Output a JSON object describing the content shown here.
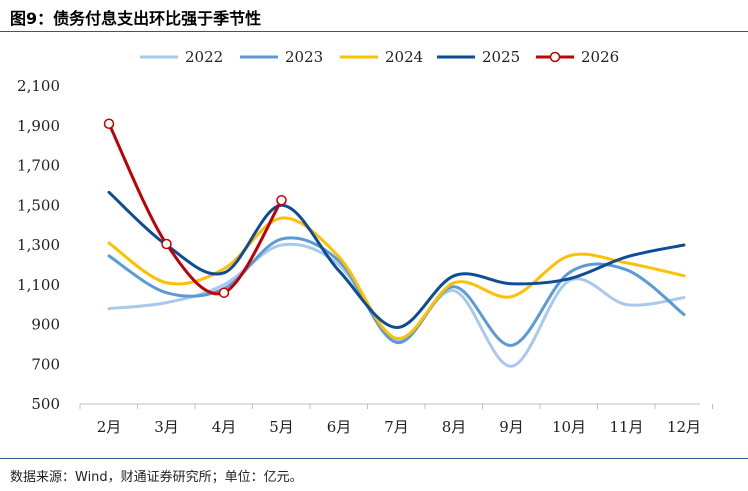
{
  "figure": {
    "title": "图9：债务付息支出环比强于季节性",
    "source": "数据来源：Wind，财通证券研究所；单位：亿元。"
  },
  "chart_data": {
    "type": "line",
    "categories": [
      "2月",
      "3月",
      "4月",
      "5月",
      "6月",
      "7月",
      "8月",
      "9月",
      "10月",
      "11月",
      "12月"
    ],
    "ylim": [
      500,
      2100
    ],
    "yticks": [
      500,
      700,
      900,
      1100,
      1300,
      1500,
      1700,
      1900,
      2100
    ],
    "ytick_labels": [
      "500",
      "700",
      "900",
      "1,100",
      "1,300",
      "1,500",
      "1,700",
      "1,900",
      "2,100"
    ],
    "grid": false,
    "legend_position": "top",
    "series": [
      {
        "name": "2022",
        "color": "#a9c9ec",
        "values": [
          980,
          1010,
          1100,
          1300,
          1200,
          820,
          1070,
          690,
          1120,
          1000,
          1035
        ]
      },
      {
        "name": "2023",
        "color": "#5b9bd5",
        "values": [
          1245,
          1060,
          1080,
          1330,
          1220,
          810,
          1090,
          795,
          1160,
          1175,
          950
        ]
      },
      {
        "name": "2024",
        "color": "#ffc000",
        "values": [
          1310,
          1110,
          1180,
          1435,
          1240,
          830,
          1110,
          1040,
          1245,
          1210,
          1145
        ]
      },
      {
        "name": "2025",
        "color": "#0e4c96",
        "values": [
          1565,
          1300,
          1160,
          1500,
          1170,
          885,
          1145,
          1105,
          1130,
          1240,
          1300
        ]
      },
      {
        "name": "2026",
        "color": "#c00000",
        "marker": "circle",
        "values": [
          1910,
          1305,
          1060,
          1525,
          null,
          null,
          null,
          null,
          null,
          null,
          null
        ]
      }
    ]
  }
}
